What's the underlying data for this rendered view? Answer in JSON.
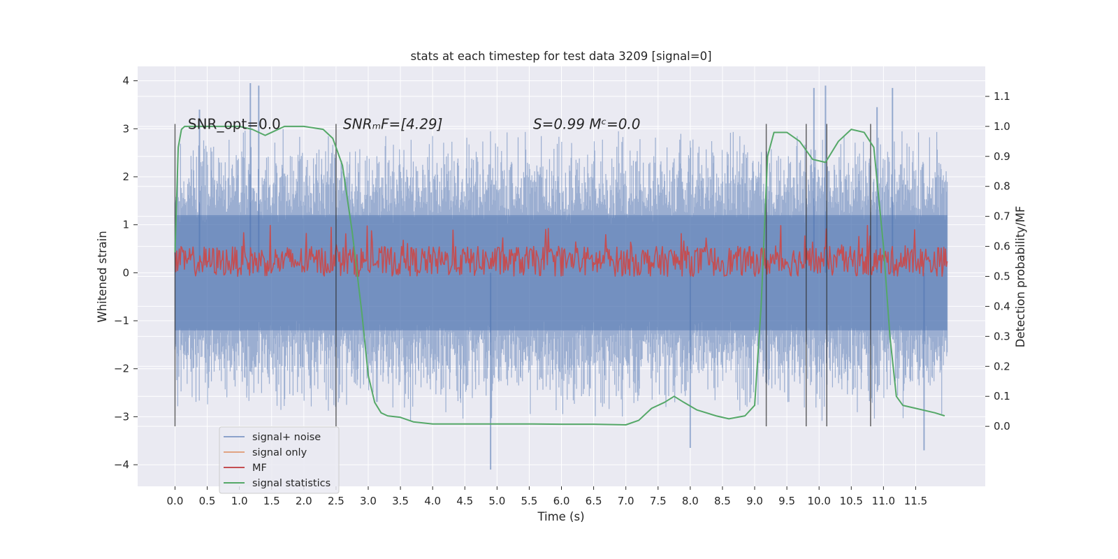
{
  "chart_data": {
    "type": "line",
    "title": "stats at each timestep for test data 3209 [signal=0]",
    "xlabel": "Time (s)",
    "ylabel": "Whitened strain",
    "y2label": "Detection probability/MF",
    "xlim": [
      -0.58,
      12.58
    ],
    "ylim": [
      -4.45,
      4.3
    ],
    "y2lim": [
      -0.2,
      1.2
    ],
    "xticks": [
      0.0,
      0.5,
      1.0,
      1.5,
      2.0,
      2.5,
      3.0,
      3.5,
      4.0,
      4.5,
      5.0,
      5.5,
      6.0,
      6.5,
      7.0,
      7.5,
      8.0,
      8.5,
      9.0,
      9.5,
      10.0,
      10.5,
      11.0,
      11.5
    ],
    "xticklabels": [
      "0.0",
      "0.5",
      "1.0",
      "1.5",
      "2.0",
      "2.5",
      "3.0",
      "3.5",
      "4.0",
      "4.5",
      "5.0",
      "5.5",
      "6.0",
      "6.5",
      "7.0",
      "7.5",
      "8.0",
      "8.5",
      "9.0",
      "9.5",
      "10.0",
      "10.5",
      "11.0",
      "11.5"
    ],
    "yticks": [
      -4,
      -3,
      -2,
      -1,
      0,
      1,
      2,
      3,
      4
    ],
    "yticklabels": [
      "−4",
      "−3",
      "−2",
      "−1",
      "0",
      "1",
      "2",
      "3",
      "4"
    ],
    "y2ticks": [
      0.0,
      0.1,
      0.2,
      0.3,
      0.4,
      0.5,
      0.6,
      0.7,
      0.8,
      0.9,
      1.0,
      1.1
    ],
    "y2ticklabels": [
      "0.0",
      "0.1",
      "0.2",
      "0.3",
      "0.4",
      "0.5",
      "0.6",
      "0.7",
      "0.8",
      "0.9",
      "1.0",
      "1.1"
    ],
    "grid": true,
    "legend_position": "lower-left",
    "series": [
      {
        "name": "signal+ noise",
        "axis": "left",
        "color": "#4c72b0",
        "x_range": [
          0.0,
          11.99
        ],
        "values_description_range": [
          -4.1,
          3.95
        ],
        "spikes": [
          [
            0.38,
            3.4
          ],
          [
            1.17,
            3.95
          ],
          [
            1.3,
            3.9
          ],
          [
            4.9,
            -4.1
          ],
          [
            8.0,
            -3.65
          ],
          [
            9.92,
            3.85
          ],
          [
            10.1,
            3.9
          ],
          [
            10.9,
            3.45
          ],
          [
            11.14,
            3.85
          ],
          [
            11.63,
            -3.7
          ]
        ]
      },
      {
        "name": "signal only",
        "axis": "left",
        "color": "#dd8452",
        "values": []
      },
      {
        "name": "MF",
        "axis": "right",
        "color": "#c44e52",
        "x_range": [
          0.0,
          11.99
        ],
        "baseline_range": [
          0.5,
          0.6
        ],
        "peak_max": 0.67
      },
      {
        "name": "signal statistics",
        "axis": "right",
        "color": "#55a868",
        "x": [
          0.0,
          0.05,
          0.1,
          0.15,
          0.3,
          0.6,
          1.0,
          1.2,
          1.4,
          1.5,
          1.7,
          2.0,
          2.3,
          2.45,
          2.6,
          2.75,
          2.9,
          3.0,
          3.1,
          3.2,
          3.3,
          3.5,
          3.7,
          4.0,
          4.5,
          5.0,
          5.5,
          6.0,
          6.5,
          7.0,
          7.2,
          7.4,
          7.6,
          7.75,
          7.9,
          8.1,
          8.4,
          8.6,
          8.85,
          9.0,
          9.1,
          9.2,
          9.3,
          9.5,
          9.7,
          9.9,
          10.1,
          10.3,
          10.5,
          10.7,
          10.85,
          11.0,
          11.1,
          11.2,
          11.3,
          11.5,
          11.8,
          11.95
        ],
        "y": [
          0.58,
          0.93,
          0.99,
          1.0,
          1.0,
          1.0,
          1.0,
          0.99,
          0.97,
          0.98,
          1.0,
          1.0,
          0.99,
          0.96,
          0.87,
          0.65,
          0.38,
          0.17,
          0.08,
          0.045,
          0.035,
          0.03,
          0.015,
          0.008,
          0.008,
          0.008,
          0.008,
          0.007,
          0.007,
          0.005,
          0.02,
          0.06,
          0.08,
          0.1,
          0.08,
          0.055,
          0.035,
          0.025,
          0.035,
          0.07,
          0.4,
          0.9,
          0.98,
          0.98,
          0.95,
          0.89,
          0.88,
          0.95,
          0.99,
          0.98,
          0.93,
          0.6,
          0.3,
          0.1,
          0.07,
          0.06,
          0.045,
          0.035
        ]
      }
    ],
    "vlines": [
      0.0,
      2.5,
      9.18,
      9.8,
      10.12,
      10.8
    ],
    "vline_range": [
      -3.2,
      3.1
    ],
    "annotations": [
      {
        "text": "SNR_opt=0.0"
      },
      {
        "text": "SNRₘF=[4.29]"
      },
      {
        "text": "S=0.99   Mᶜ=0.0"
      }
    ]
  },
  "legend": [
    {
      "label": "signal+ noise",
      "color": "#4c72b0"
    },
    {
      "label": "signal only",
      "color": "#dd8452"
    },
    {
      "label": "MF",
      "color": "#c44e52"
    },
    {
      "label": "signal statistics",
      "color": "#55a868"
    }
  ],
  "colors": {
    "plot_bg": "#eaeaf2",
    "grid": "#ffffff",
    "vline": "#333333"
  }
}
